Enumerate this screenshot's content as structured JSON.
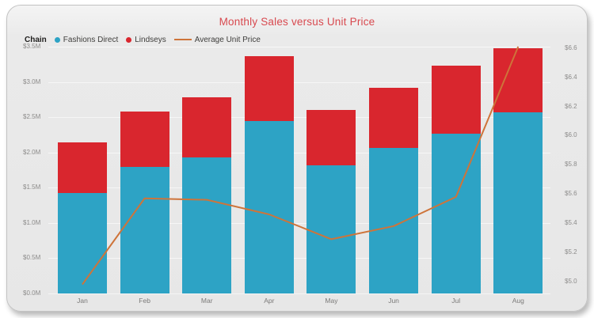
{
  "chart_data": {
    "type": "combo-bar-line",
    "bar_type": "stacked",
    "title": "Monthly Sales versus Unit Price",
    "title_color": "#d8494f",
    "legend_title": "Chain",
    "legend_position": "top-left",
    "categories": [
      "Jan",
      "Feb",
      "Mar",
      "Apr",
      "May",
      "Jun",
      "Jul",
      "Aug"
    ],
    "bar_series": [
      {
        "name": "Fashions Direct",
        "color": "#2da3c5",
        "unit": "M USD",
        "values": [
          1.43,
          1.8,
          1.93,
          2.44,
          1.82,
          2.06,
          2.27,
          2.57
        ]
      },
      {
        "name": "Lindseys",
        "color": "#d9262e",
        "unit": "M USD",
        "values": [
          0.71,
          0.78,
          0.85,
          0.93,
          0.78,
          0.86,
          0.96,
          0.91
        ]
      }
    ],
    "bar_totals": [
      2.14,
      2.58,
      2.78,
      3.37,
      2.6,
      2.92,
      3.23,
      3.48
    ],
    "line_series": {
      "name": "Average Unit Price",
      "color": "#ce743a",
      "unit": "USD",
      "values": [
        4.98,
        5.57,
        5.56,
        5.46,
        5.29,
        5.38,
        5.58,
        6.61
      ]
    },
    "left_axis": {
      "min": 0,
      "max": 3.5,
      "tick_step": 0.5,
      "ticks": [
        "$3.5M",
        "$3.0M",
        "$2.5M",
        "$2.0M",
        "$1.5M",
        "$1.0M",
        "$0.5M",
        "$0.0M"
      ]
    },
    "right_axis": {
      "min": 5.0,
      "max": 6.6,
      "tick_step": 0.2,
      "ticks": [
        "$6.6",
        "$6.4",
        "$6.2",
        "$6.0",
        "$5.8",
        "$5.6",
        "$5.4",
        "$5.2",
        "$5.0"
      ]
    },
    "grid": "horizontal"
  }
}
